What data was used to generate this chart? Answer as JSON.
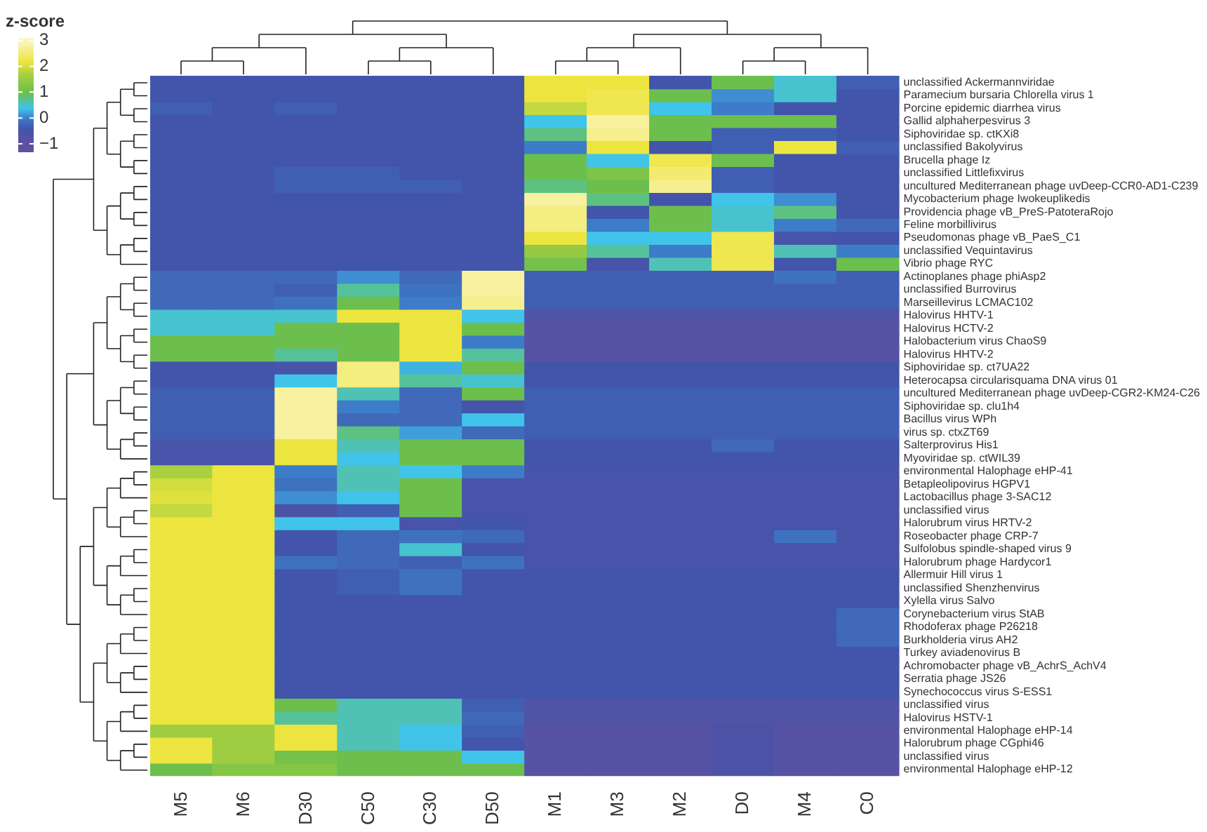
{
  "chart_data": {
    "type": "heatmap",
    "clabel": "z-score",
    "clim": [
      -1.3,
      3.1
    ],
    "cticks": [
      -1,
      0,
      1,
      2,
      3
    ],
    "categories": [
      "M5",
      "M6",
      "D30",
      "C50",
      "C30",
      "D50",
      "M1",
      "M3",
      "M2",
      "D0",
      "M4",
      "C0"
    ],
    "y_categories": [
      "unclassified Ackermannviridae",
      "Paramecium bursaria Chlorella virus 1",
      "Porcine epidemic diarrhea virus",
      "Gallid alphaherpesvirus 3",
      "Siphoviridae sp. ctKXi8",
      "unclassified Bakolyvirus",
      "Brucella phage Iz",
      "unclassified Littlefixvirus",
      "uncultured Mediterranean phage uvDeep-CCR0-AD1-C239",
      "Mycobacterium phage Iwokeuplikedis",
      "Providencia phage vB_PreS-PatoteraRojo",
      "Feline morbillivirus",
      "Pseudomonas phage vB_PaeS_C1",
      "unclassified Vequintavirus",
      "Vibrio phage RYC",
      "Actinoplanes phage phiAsp2",
      "unclassified Burrovirus",
      "Marseillevirus LCMAC102",
      "Halovirus HHTV-1",
      "Halovirus HCTV-2",
      "Halobacterium virus ChaoS9",
      "Halovirus HHTV-2",
      "Siphoviridae sp. ct7UA22",
      "Heterocapsa circularisquama DNA virus 01",
      "uncultured Mediterranean phage uvDeep-CGR2-KM24-C26",
      "Siphoviridae sp. clu1h4",
      "Bacillus virus WPh",
      "virus sp. ctxZT69",
      "Salterprovirus His1",
      "Myoviridae sp. ctWIL39",
      "environmental Halophage eHP-41",
      "Betapleolipovirus HGPV1",
      "Lactobacillus phage 3-SAC12",
      "unclassified virus",
      "Halorubrum virus HRTV-2",
      "Roseobacter phage CRP-7",
      "Sulfolobus spindle-shaped virus 9",
      "Halorubrum phage Hardycor1",
      "Allermuir Hill virus 1",
      "unclassified Shenzhenvirus",
      "Xylella virus Salvo",
      "Corynebacterium virus StAB",
      "Rhodoferax phage P26218",
      "Burkholderia virus AH2",
      "Turkey aviadenovirus B",
      "Achromobacter phage vB_AchrS_AchV4",
      "Serratia phage JS26",
      "Synechococcus virus S-ESS1",
      "unclassified virus",
      "Halovirus HSTV-1",
      "environmental Halophage eHP-14",
      "Halorubrum phage CGphi46",
      "unclassified virus",
      "environmental Halophage eHP-12"
    ],
    "cells": [
      [
        -0.4,
        -0.4,
        -0.4,
        -0.4,
        -0.4,
        -0.4,
        2.2,
        2.2,
        -0.4,
        1,
        0.5,
        -0.3
      ],
      [
        -0.4,
        -0.4,
        -0.4,
        -0.4,
        -0.4,
        -0.4,
        2.2,
        2.3,
        1,
        0.1,
        0.5,
        -0.4
      ],
      [
        -0.3,
        -0.4,
        -0.3,
        -0.4,
        -0.4,
        -0.4,
        1.9,
        2.3,
        0.4,
        0,
        -0.4,
        -0.4
      ],
      [
        -0.4,
        -0.4,
        -0.4,
        -0.4,
        -0.4,
        -0.4,
        0.4,
        2.8,
        1,
        1,
        1,
        -0.4
      ],
      [
        -0.4,
        -0.4,
        -0.4,
        -0.4,
        -0.4,
        -0.4,
        0.8,
        2.7,
        1,
        -0.3,
        -0.3,
        -0.4
      ],
      [
        -0.4,
        -0.4,
        -0.4,
        -0.4,
        -0.4,
        -0.4,
        0,
        2.2,
        -0.4,
        -0.3,
        2.2,
        -0.3
      ],
      [
        -0.4,
        -0.4,
        -0.4,
        -0.4,
        -0.4,
        -0.4,
        1,
        0.4,
        2.3,
        1,
        -0.4,
        -0.4
      ],
      [
        -0.4,
        -0.4,
        -0.3,
        -0.3,
        -0.4,
        -0.4,
        1,
        1.2,
        2.5,
        -0.3,
        -0.4,
        -0.4
      ],
      [
        -0.4,
        -0.4,
        -0.3,
        -0.3,
        -0.3,
        -0.4,
        0.8,
        1,
        2.7,
        -0.3,
        -0.4,
        -0.4
      ],
      [
        -0.4,
        -0.4,
        -0.4,
        -0.4,
        -0.4,
        -0.4,
        2.8,
        0.8,
        -0.4,
        0.4,
        0.1,
        -0.4
      ],
      [
        -0.4,
        -0.4,
        -0.4,
        -0.4,
        -0.4,
        -0.4,
        2.6,
        -0.4,
        1,
        0.5,
        0.8,
        -0.4
      ],
      [
        -0.4,
        -0.4,
        -0.4,
        -0.4,
        -0.4,
        -0.4,
        2.6,
        0,
        1,
        0.5,
        0,
        -0.2
      ],
      [
        -0.4,
        -0.4,
        -0.4,
        -0.4,
        -0.4,
        -0.4,
        2.2,
        0.4,
        0.4,
        2.3,
        -0.5,
        -0.4
      ],
      [
        -0.4,
        -0.4,
        -0.4,
        -0.4,
        -0.4,
        -0.4,
        1.5,
        0.7,
        0,
        2.3,
        0.6,
        0
      ],
      [
        -0.4,
        -0.4,
        -0.4,
        -0.4,
        -0.4,
        -0.4,
        1.1,
        -0.5,
        0.6,
        2.3,
        -0.4,
        1
      ],
      [
        -0.2,
        -0.2,
        -0.2,
        0.1,
        -0.2,
        2.8,
        -0.3,
        -0.3,
        -0.3,
        -0.3,
        -0.1,
        -0.3
      ],
      [
        -0.2,
        -0.2,
        -0.3,
        0.7,
        -0.1,
        2.8,
        -0.3,
        -0.3,
        -0.3,
        -0.3,
        -0.3,
        -0.3
      ],
      [
        -0.2,
        -0.2,
        -0.1,
        1,
        0,
        2.7,
        -0.3,
        -0.3,
        -0.3,
        -0.3,
        -0.3,
        -0.3
      ],
      [
        0.5,
        0.5,
        0.5,
        2.2,
        2.2,
        0.4,
        -0.7,
        -0.7,
        -0.7,
        -0.7,
        -0.7,
        -0.7
      ],
      [
        0.5,
        0.5,
        1,
        1,
        2.2,
        1,
        -0.8,
        -0.8,
        -0.8,
        -0.8,
        -0.8,
        -0.8
      ],
      [
        1,
        1,
        1,
        1,
        2.2,
        0,
        -0.8,
        -0.8,
        -0.8,
        -0.8,
        -0.8,
        -0.8
      ],
      [
        1,
        1,
        0.7,
        1,
        2.2,
        0.7,
        -0.8,
        -0.8,
        -0.8,
        -0.8,
        -0.8,
        -0.8
      ],
      [
        -0.4,
        -0.4,
        -0.5,
        2.6,
        0.3,
        1,
        -0.4,
        -0.4,
        -0.4,
        -0.4,
        -0.4,
        -0.4
      ],
      [
        -0.4,
        -0.4,
        0.4,
        2.6,
        0.7,
        0.5,
        -0.4,
        -0.4,
        -0.4,
        -0.4,
        -0.4,
        -0.4
      ],
      [
        -0.3,
        -0.3,
        2.8,
        0.6,
        -0.2,
        1,
        -0.3,
        -0.3,
        -0.3,
        -0.3,
        -0.3,
        -0.3
      ],
      [
        -0.3,
        -0.3,
        2.8,
        0,
        -0.2,
        -0.4,
        -0.3,
        -0.3,
        -0.3,
        -0.3,
        -0.3,
        -0.3
      ],
      [
        -0.3,
        -0.3,
        2.8,
        -0.2,
        -0.2,
        0.4,
        -0.3,
        -0.3,
        -0.3,
        -0.3,
        -0.3,
        -0.3
      ],
      [
        -0.3,
        -0.3,
        2.8,
        0.8,
        0.2,
        -0.2,
        -0.3,
        -0.3,
        -0.3,
        -0.3,
        -0.3,
        -0.3
      ],
      [
        -0.5,
        -0.5,
        2.2,
        0.6,
        1,
        1,
        -0.4,
        -0.4,
        -0.4,
        -0.2,
        -0.4,
        -0.4
      ],
      [
        -0.5,
        -0.5,
        2.2,
        0.4,
        1,
        1,
        -0.4,
        -0.4,
        -0.4,
        -0.4,
        -0.4,
        -0.4
      ],
      [
        1.7,
        2.2,
        0,
        0.6,
        0.4,
        0,
        -0.5,
        -0.5,
        -0.5,
        -0.5,
        -0.5,
        -0.5
      ],
      [
        2,
        2.2,
        -0.1,
        0.6,
        1,
        -0.5,
        -0.5,
        -0.5,
        -0.5,
        -0.5,
        -0.5,
        -0.5
      ],
      [
        2.1,
        2.2,
        0.1,
        0.4,
        1,
        -0.5,
        -0.5,
        -0.5,
        -0.5,
        -0.5,
        -0.5,
        -0.5
      ],
      [
        1.9,
        2.2,
        -0.6,
        -0.3,
        1,
        -0.5,
        -0.5,
        -0.5,
        -0.5,
        -0.5,
        -0.5,
        -0.5
      ],
      [
        2.2,
        2.2,
        0.4,
        0.4,
        -0.5,
        -0.4,
        -0.5,
        -0.5,
        -0.5,
        -0.5,
        -0.5,
        -0.5
      ],
      [
        2.2,
        2.2,
        -0.4,
        -0.2,
        -0.1,
        -0.2,
        -0.5,
        -0.5,
        -0.5,
        -0.5,
        -0.1,
        -0.5
      ],
      [
        2.2,
        2.2,
        -0.4,
        -0.2,
        0.5,
        -0.4,
        -0.5,
        -0.5,
        -0.5,
        -0.5,
        -0.5,
        -0.5
      ],
      [
        2.2,
        2.2,
        -0.1,
        -0.2,
        -0.3,
        -0.1,
        -0.5,
        -0.5,
        -0.5,
        -0.5,
        -0.5,
        -0.5
      ],
      [
        2.2,
        2.2,
        -0.4,
        -0.3,
        -0.1,
        -0.4,
        -0.4,
        -0.4,
        -0.4,
        -0.4,
        -0.4,
        -0.4
      ],
      [
        2.2,
        2.2,
        -0.4,
        -0.3,
        -0.1,
        -0.4,
        -0.4,
        -0.4,
        -0.4,
        -0.4,
        -0.4,
        -0.4
      ],
      [
        2.2,
        2.2,
        -0.4,
        -0.4,
        -0.4,
        -0.4,
        -0.4,
        -0.4,
        -0.4,
        -0.4,
        -0.4,
        -0.4
      ],
      [
        2.2,
        2.2,
        -0.4,
        -0.4,
        -0.4,
        -0.4,
        -0.4,
        -0.4,
        -0.4,
        -0.4,
        -0.4,
        -0.2
      ],
      [
        2.2,
        2.2,
        -0.4,
        -0.4,
        -0.4,
        -0.4,
        -0.4,
        -0.4,
        -0.4,
        -0.4,
        -0.4,
        -0.2
      ],
      [
        2.2,
        2.2,
        -0.4,
        -0.4,
        -0.4,
        -0.4,
        -0.4,
        -0.4,
        -0.4,
        -0.4,
        -0.4,
        -0.2
      ],
      [
        2.2,
        2.2,
        -0.4,
        -0.4,
        -0.4,
        -0.4,
        -0.4,
        -0.4,
        -0.4,
        -0.4,
        -0.4,
        -0.4
      ],
      [
        2.2,
        2.2,
        -0.4,
        -0.4,
        -0.4,
        -0.4,
        -0.4,
        -0.4,
        -0.4,
        -0.4,
        -0.4,
        -0.4
      ],
      [
        2.2,
        2.2,
        -0.4,
        -0.4,
        -0.4,
        -0.4,
        -0.4,
        -0.4,
        -0.4,
        -0.4,
        -0.4,
        -0.4
      ],
      [
        2.2,
        2.2,
        -0.4,
        -0.4,
        -0.4,
        -0.4,
        -0.4,
        -0.4,
        -0.4,
        -0.4,
        -0.4,
        -0.4
      ],
      [
        2.2,
        2.2,
        1,
        0.6,
        0.6,
        -0.3,
        -0.7,
        -0.7,
        -0.7,
        -0.7,
        -0.7,
        -0.7
      ],
      [
        2.2,
        2.2,
        0.7,
        0.6,
        0.6,
        -0.2,
        -0.7,
        -0.7,
        -0.7,
        -0.7,
        -0.7,
        -0.7
      ],
      [
        1.6,
        1.6,
        2.2,
        0.6,
        0.4,
        -0.3,
        -0.8,
        -0.8,
        -0.8,
        -0.6,
        -0.8,
        -0.8
      ],
      [
        2.2,
        1.6,
        2.2,
        0.6,
        0.4,
        -0.4,
        -0.8,
        -0.8,
        -0.8,
        -0.6,
        -0.8,
        -0.8
      ],
      [
        2.2,
        1.6,
        1.1,
        1,
        1,
        0.4,
        -0.8,
        -0.8,
        -0.8,
        -0.6,
        -0.8,
        -0.8
      ],
      [
        1,
        1.3,
        1.3,
        1,
        1,
        1,
        -0.8,
        -0.8,
        -0.8,
        -0.6,
        -0.8,
        -0.8
      ]
    ]
  }
}
